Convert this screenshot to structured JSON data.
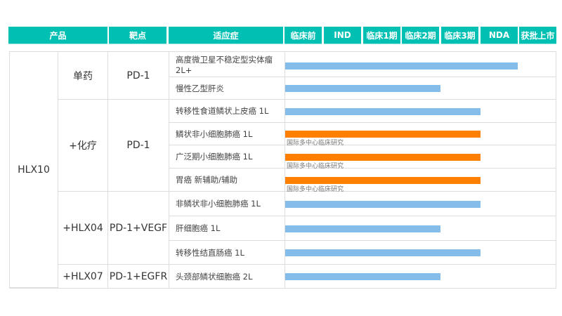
{
  "header": {
    "product": "产品",
    "target": "靶点",
    "indication": "适应症",
    "stages": [
      "临床前",
      "IND",
      "临床1期",
      "临床2期",
      "临床3期",
      "NDA",
      "获批上市"
    ]
  },
  "colors": {
    "header": "#00bfb3",
    "domestic_bar": "#85bdea",
    "international_bar": "#ff7f00"
  },
  "chart_data": {
    "type": "bar",
    "orientation": "horizontal",
    "product": "HLX10",
    "groups": [
      {
        "name": "单药",
        "target": "PD-1",
        "rows": [
          0,
          1
        ]
      },
      {
        "name": "+化疗",
        "target": "PD-1",
        "rows": [
          2,
          3,
          4,
          5
        ]
      },
      {
        "name": "+HLX04",
        "target": "PD-1+VEGF",
        "rows": [
          6,
          7,
          8
        ]
      },
      {
        "name": "+HLX07",
        "target": "PD-1+EGFR",
        "rows": [
          9
        ]
      }
    ],
    "rows": [
      {
        "indication": "高度微卫星不稳定型实体瘤 2L+",
        "stage": "NDA",
        "international": false,
        "note": ""
      },
      {
        "indication": "慢性乙型肝炎",
        "stage": "临床2期",
        "international": false,
        "note": ""
      },
      {
        "indication": "转移性食道鳞状上皮癌 1L",
        "stage": "临床3期",
        "international": false,
        "note": ""
      },
      {
        "indication": "鳞状非小细胞肺癌 1L",
        "stage": "临床3期",
        "international": true,
        "note": "国际多中心临床研究"
      },
      {
        "indication": "广泛期小细胞肺癌 1L",
        "stage": "临床3期",
        "international": true,
        "note": "国际多中心临床研究"
      },
      {
        "indication": "胃癌 新辅助/辅助",
        "stage": "临床3期",
        "international": true,
        "note": "国际多中心临床研究"
      },
      {
        "indication": "非鳞状非小细胞肺癌 1L",
        "stage": "临床3期",
        "international": false,
        "note": ""
      },
      {
        "indication": "肝细胞癌 1L",
        "stage": "临床2期",
        "international": false,
        "note": ""
      },
      {
        "indication": "转移性结直肠癌 1L",
        "stage": "临床3期",
        "international": false,
        "note": ""
      },
      {
        "indication": "头颈部鳞状细胞癌 2L",
        "stage": "临床2期",
        "international": false,
        "note": ""
      }
    ]
  }
}
